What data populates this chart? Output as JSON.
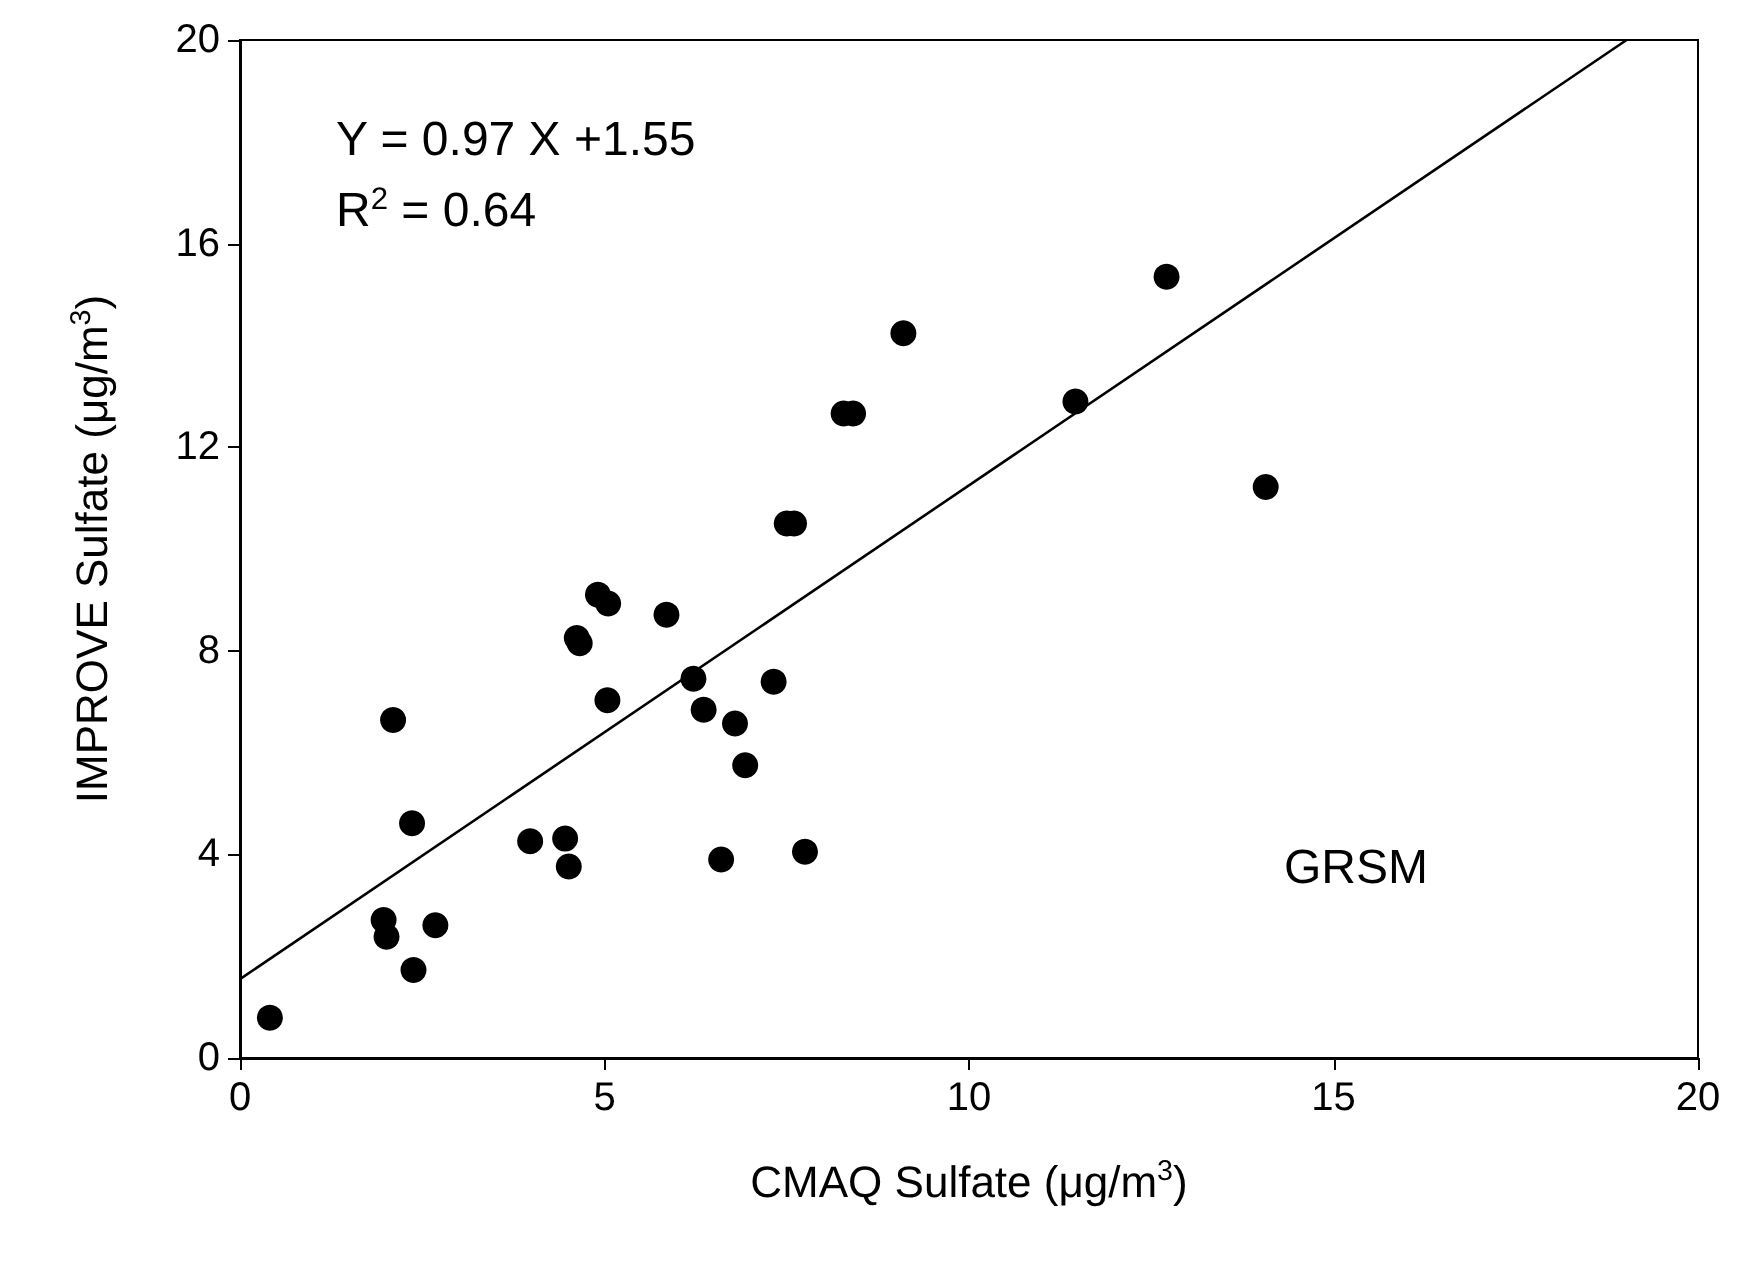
{
  "chart_data": {
    "type": "scatter",
    "xlabel": "CMAQ Sulfate (μg/m$^{3}$)",
    "ylabel": "IMPROVE Sulfate (μg/m$^{3}$)",
    "xlim": [
      0,
      20
    ],
    "xticks": [
      0,
      5,
      10,
      15,
      20
    ],
    "ylim": [
      0,
      20
    ],
    "yticks": [
      0,
      4,
      8,
      12,
      16,
      20
    ],
    "grid": false,
    "marker": "circle",
    "annotations": [
      "Y = 0.97 X +1.55",
      "R$^{2}$ = 0.64",
      "GRSM"
    ],
    "series": [
      {
        "color": "#000000",
        "x": [
          0.41,
          2.1,
          2.36,
          1.97,
          2.01,
          2.68,
          2.38,
          3.98,
          4.46,
          4.51,
          4.62,
          4.66,
          4.91,
          5.05,
          5.04,
          5.85,
          6.22,
          6.36,
          6.6,
          6.79,
          6.93,
          7.32,
          7.75,
          7.5,
          7.6,
          8.28,
          8.41,
          9.1,
          11.46,
          12.71,
          14.07
        ],
        "values": [
          0.79,
          6.64,
          4.61,
          2.71,
          2.38,
          2.61,
          1.73,
          4.26,
          4.31,
          3.76,
          8.25,
          8.15,
          9.1,
          8.93,
          7.03,
          8.71,
          7.45,
          6.84,
          3.9,
          6.57,
          5.75,
          7.39,
          4.05,
          10.5,
          10.5,
          12.66,
          12.66,
          14.24,
          12.9,
          15.35,
          11.22
        ]
      },
      {
        "type": "line",
        "color": "#000000",
        "marker": "none",
        "line_style": "solid",
        "x": [
          0,
          19.02
        ],
        "values": [
          1.55,
          20
        ]
      }
    ]
  }
}
